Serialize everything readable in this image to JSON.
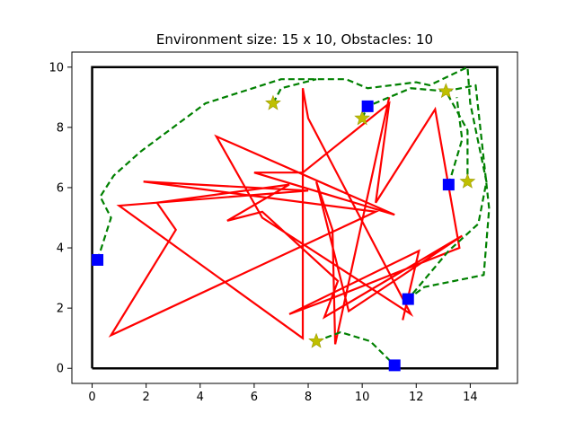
{
  "chart_data": {
    "type": "line",
    "title": "Environment size: 15 x 10, Obstacles: 10",
    "xlabel": "",
    "ylabel": "",
    "xlim": [
      -0.75,
      15.75
    ],
    "ylim": [
      -0.5,
      10.5
    ],
    "xticks": [
      0,
      2,
      4,
      6,
      8,
      10,
      12,
      14
    ],
    "yticks": [
      0,
      2,
      4,
      6,
      8,
      10
    ],
    "grid": false,
    "legend": "none",
    "boundary": {
      "color": "#000000",
      "points": [
        [
          0,
          0
        ],
        [
          15,
          0
        ],
        [
          15,
          10
        ],
        [
          0,
          10
        ],
        [
          0,
          0
        ]
      ]
    },
    "obstacle_path": {
      "color": "#ff0000",
      "points": [
        [
          11,
          9.0
        ],
        [
          9,
          0.8
        ],
        [
          8.9,
          4.6
        ],
        [
          8.3,
          6.2
        ],
        [
          9.5,
          1.9
        ],
        [
          13.7,
          4.4
        ],
        [
          8.6,
          1.7
        ],
        [
          9.1,
          2.9
        ],
        [
          6.3,
          5.2
        ],
        [
          5.0,
          4.9
        ],
        [
          7.3,
          6.1
        ],
        [
          2.4,
          5.5
        ],
        [
          3.1,
          4.6
        ],
        [
          0.7,
          1.1
        ],
        [
          10.5,
          5.2
        ],
        [
          1.9,
          6.2
        ],
        [
          8.0,
          5.9
        ],
        [
          1.0,
          5.4
        ],
        [
          7.8,
          1.0
        ],
        [
          7.8,
          9.3
        ],
        [
          8.0,
          8.3
        ],
        [
          11.8,
          1.8
        ],
        [
          6.3,
          5.0
        ],
        [
          4.6,
          7.7
        ],
        [
          11.2,
          5.1
        ],
        [
          6.0,
          6.5
        ],
        [
          7.8,
          6.5
        ],
        [
          11.0,
          8.8
        ],
        [
          10.5,
          5.5
        ],
        [
          12.7,
          8.6
        ],
        [
          13.6,
          4.0
        ],
        [
          8.8,
          2.3
        ],
        [
          7.3,
          1.8
        ],
        [
          12.1,
          3.9
        ],
        [
          11.5,
          1.6
        ]
      ]
    },
    "series": [
      {
        "marker": "star",
        "color": "#bfbf00",
        "points": [
          [
            6.7,
            8.8
          ],
          [
            8.3,
            0.9
          ],
          [
            10.0,
            8.3
          ],
          [
            13.1,
            9.2
          ],
          [
            13.9,
            6.2
          ]
        ]
      },
      {
        "marker": "square",
        "color": "#0000ff",
        "points": [
          [
            0.2,
            3.6
          ],
          [
            11.2,
            0.1
          ],
          [
            11.7,
            2.3
          ],
          [
            13.2,
            6.1
          ],
          [
            10.2,
            8.7
          ]
        ]
      }
    ],
    "route": {
      "style": "dashed",
      "color": "#008000",
      "segments": [
        [
          [
            0.2,
            3.6
          ],
          [
            0.7,
            5.0
          ],
          [
            0.3,
            5.7
          ],
          [
            0.8,
            6.4
          ],
          [
            1.8,
            7.2
          ],
          [
            4.2,
            8.8
          ],
          [
            7.0,
            9.6
          ],
          [
            9.4,
            9.6
          ],
          [
            10.2,
            9.3
          ],
          [
            12.0,
            9.5
          ],
          [
            12.5,
            9.4
          ],
          [
            13.9,
            10.0
          ],
          [
            14.0,
            8.8
          ],
          [
            14.6,
            6.2
          ],
          [
            14.3,
            4.8
          ],
          [
            13.2,
            3.9
          ],
          [
            11.7,
            2.3
          ]
        ],
        [
          [
            6.7,
            8.8
          ],
          [
            7.0,
            9.3
          ],
          [
            8.3,
            9.6
          ]
        ],
        [
          [
            8.3,
            0.9
          ],
          [
            9.2,
            1.2
          ],
          [
            10.3,
            0.9
          ],
          [
            11.2,
            0.1
          ]
        ],
        [
          [
            10.0,
            8.3
          ],
          [
            10.2,
            8.7
          ],
          [
            11.8,
            9.3
          ],
          [
            13.1,
            9.2
          ],
          [
            13.9,
            7.9
          ],
          [
            13.9,
            6.2
          ]
        ],
        [
          [
            13.1,
            9.2
          ],
          [
            14.2,
            9.4
          ],
          [
            14.7,
            5.3
          ],
          [
            14.5,
            3.1
          ],
          [
            12.3,
            2.7
          ],
          [
            11.7,
            2.3
          ]
        ],
        [
          [
            13.2,
            6.1
          ],
          [
            13.7,
            7.6
          ],
          [
            13.5,
            9.0
          ]
        ]
      ]
    }
  }
}
